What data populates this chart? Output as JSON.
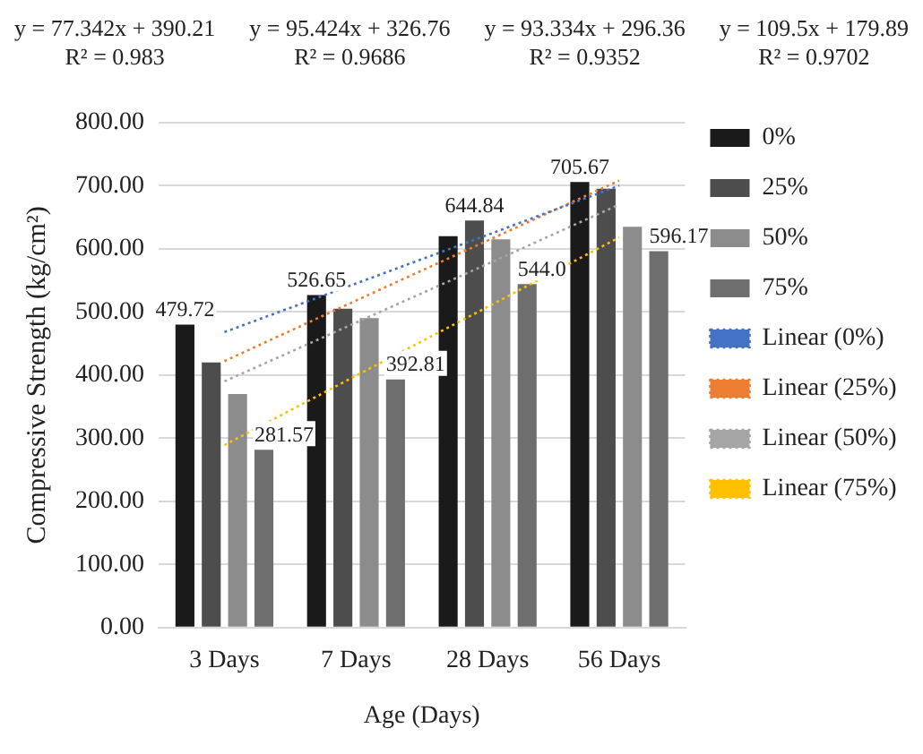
{
  "chart_data": {
    "type": "bar",
    "annotations": [
      "y = 77.342x + 390.21\nR² = 0.983",
      "y = 95.424x + 326.76\nR² = 0.9686",
      "y = 93.334x + 296.36\nR² = 0.9352",
      "y = 109.5x + 179.89\nR² = 0.9702"
    ],
    "xlabel": "Age (Days)",
    "ylabel": "Compressive Strength (kg/cm²)",
    "categories": [
      "3 Days",
      "7 Days",
      "28 Days",
      "56 Days"
    ],
    "series": [
      {
        "name": "0%",
        "color": "#1a1a1a",
        "values": [
          479.72,
          526.65,
          620,
          705.67
        ],
        "value_labels": [
          "479.72",
          "526.65",
          null,
          "705.67"
        ]
      },
      {
        "name": "25%",
        "color": "#4d4d4d",
        "values": [
          420,
          505,
          644.84,
          695
        ],
        "value_labels": [
          null,
          null,
          "644.84",
          null
        ]
      },
      {
        "name": "50%",
        "color": "#8c8c8c",
        "values": [
          370,
          490,
          615,
          635
        ]
      },
      {
        "name": "75%",
        "color": "#6e6e6e",
        "values": [
          281.57,
          392.81,
          544.0,
          596.17
        ],
        "value_labels": [
          "281.57",
          "392.81",
          "544.0",
          "596.17"
        ]
      },
      {
        "name": "Linear (0%)",
        "type": "line",
        "color": "#4472c4",
        "line_style": "dotted",
        "marker": "none",
        "x": [
          "3 Days",
          "7 Days",
          "28 Days",
          "56 Days"
        ],
        "values": [
          468,
          545,
          622,
          700
        ]
      },
      {
        "name": "Linear (25%)",
        "type": "line",
        "color": "#ed7d31",
        "line_style": "dotted",
        "marker": "none",
        "x": [
          "3 Days",
          "7 Days",
          "28 Days",
          "56 Days"
        ],
        "values": [
          422,
          518,
          613,
          708
        ]
      },
      {
        "name": "Linear (50%)",
        "type": "line",
        "color": "#a5a5a5",
        "line_style": "dotted",
        "marker": "none",
        "x": [
          "3 Days",
          "7 Days",
          "28 Days",
          "56 Days"
        ],
        "values": [
          390,
          483,
          576,
          670
        ]
      },
      {
        "name": "Linear (75%)",
        "type": "line",
        "color": "#ffc000",
        "line_style": "dotted",
        "marker": "none",
        "x": [
          "3 Days",
          "7 Days",
          "28 Days",
          "56 Days"
        ],
        "values": [
          289,
          399,
          508,
          618
        ]
      }
    ],
    "ylim": [
      0,
      800
    ],
    "yticks": [
      {
        "value": 0,
        "label": "0.00"
      },
      {
        "value": 100,
        "label": "100.00"
      },
      {
        "value": 200,
        "label": "200.00"
      },
      {
        "value": 300,
        "label": "300.00"
      },
      {
        "value": 400,
        "label": "400.00"
      },
      {
        "value": 500,
        "label": "500.00"
      },
      {
        "value": 600,
        "label": "600.00"
      },
      {
        "value": 700,
        "label": "700.00"
      },
      {
        "value": 800,
        "label": "800.00"
      }
    ],
    "grid": "y",
    "legend": "right"
  }
}
